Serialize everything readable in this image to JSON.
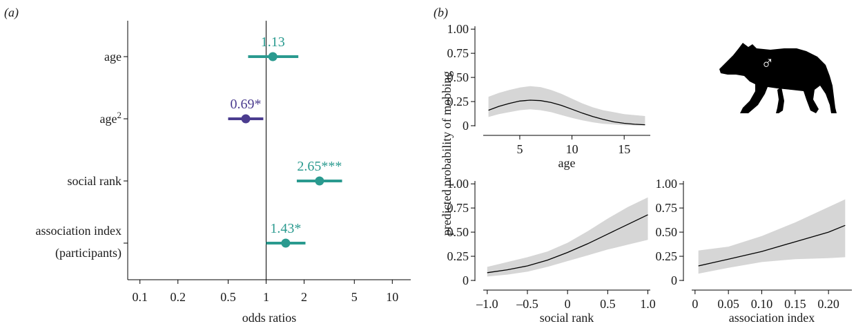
{
  "panel_labels": {
    "a": "(a)",
    "b": "(b)"
  },
  "colors": {
    "green": "#2a9a8f",
    "purple": "#4b3c8f",
    "band": "#d6d6d6",
    "line": "#000000"
  },
  "icon": "hyena-silhouette-icon",
  "male_symbol": "♂",
  "chart_data": [
    {
      "type": "forest",
      "xlabel": "odds ratios",
      "xscale": "log",
      "xlim": [
        0.08,
        14
      ],
      "xticks": [
        0.1,
        0.2,
        0.5,
        1,
        2,
        5,
        10
      ],
      "xtick_labels": [
        "0.1",
        "0.2",
        "0.5",
        "1",
        "2",
        "5",
        "10"
      ],
      "reference_line": 1,
      "rows": [
        {
          "label": "age",
          "or": 1.13,
          "lo": 0.72,
          "hi": 1.8,
          "annot": "1.13",
          "color": "green"
        },
        {
          "label": "age",
          "sup": "2",
          "or": 0.69,
          "lo": 0.5,
          "hi": 0.95,
          "annot": "0.69*",
          "color": "purple"
        },
        {
          "label": "social rank",
          "or": 2.65,
          "lo": 1.75,
          "hi": 4.0,
          "annot": "2.65***",
          "color": "green"
        },
        {
          "label": "association index",
          "label2": "(participants)",
          "or": 1.43,
          "lo": 1.0,
          "hi": 2.05,
          "annot": "1.43*",
          "color": "green"
        }
      ]
    },
    {
      "type": "line",
      "xlabel": "age",
      "shared_ylabel": "predicted probability of mobbing",
      "xlim": [
        1.5,
        17.5
      ],
      "ylim": [
        0,
        1.03
      ],
      "xticks": [
        5,
        10,
        15
      ],
      "xtick_labels": [
        "5",
        "10",
        "15"
      ],
      "yticks": [
        0,
        0.25,
        0.5,
        0.75,
        1.0
      ],
      "ytick_labels": [
        "0",
        "0.25",
        "0.50",
        "0.75",
        "1.00"
      ],
      "x": [
        2,
        3,
        4,
        5,
        6,
        7,
        8,
        9,
        10,
        11,
        12,
        13,
        14,
        15,
        16,
        17
      ],
      "y": [
        0.16,
        0.2,
        0.23,
        0.255,
        0.265,
        0.26,
        0.24,
        0.21,
        0.17,
        0.13,
        0.095,
        0.065,
        0.04,
        0.025,
        0.015,
        0.01
      ],
      "lower": [
        0.09,
        0.12,
        0.14,
        0.16,
        0.17,
        0.16,
        0.14,
        0.11,
        0.08,
        0.055,
        0.035,
        0.02,
        0.012,
        0.006,
        0.003,
        0.002
      ],
      "upper": [
        0.3,
        0.34,
        0.37,
        0.395,
        0.41,
        0.4,
        0.37,
        0.33,
        0.28,
        0.23,
        0.19,
        0.16,
        0.14,
        0.12,
        0.11,
        0.1
      ]
    },
    {
      "type": "line",
      "xlabel": "social rank",
      "xlim": [
        -1.05,
        1.03
      ],
      "ylim": [
        0,
        1.03
      ],
      "xticks": [
        -1.0,
        -0.5,
        0,
        0.5,
        1.0
      ],
      "xtick_labels": [
        "–1.0",
        "–0.5",
        "0",
        "0.5",
        "1.0"
      ],
      "yticks": [
        0,
        0.25,
        0.5,
        0.75,
        1.0
      ],
      "ytick_labels": [
        "0",
        "0.25",
        "0.50",
        "0.75",
        "1.00"
      ],
      "x": [
        -1.0,
        -0.75,
        -0.5,
        -0.25,
        0,
        0.25,
        0.5,
        0.75,
        1.0
      ],
      "y": [
        0.08,
        0.11,
        0.15,
        0.21,
        0.29,
        0.38,
        0.48,
        0.58,
        0.68
      ],
      "lower": [
        0.04,
        0.06,
        0.09,
        0.14,
        0.2,
        0.26,
        0.32,
        0.37,
        0.42
      ],
      "upper": [
        0.14,
        0.19,
        0.24,
        0.3,
        0.39,
        0.51,
        0.64,
        0.76,
        0.86
      ]
    },
    {
      "type": "line",
      "xlabel": "association index",
      "xlim": [
        -0.005,
        0.235
      ],
      "ylim": [
        0,
        1.03
      ],
      "xticks": [
        0,
        0.05,
        0.1,
        0.15,
        0.2
      ],
      "xtick_labels": [
        "0",
        "0.05",
        "0.10",
        "0.15",
        "0.20"
      ],
      "yticks": [
        0,
        0.25,
        0.5,
        0.75,
        1.0
      ],
      "ytick_labels": [
        "0",
        "0.25",
        "0.50",
        "0.75",
        "1.00"
      ],
      "x": [
        0.005,
        0.05,
        0.1,
        0.15,
        0.2,
        0.225
      ],
      "y": [
        0.15,
        0.22,
        0.3,
        0.4,
        0.5,
        0.57
      ],
      "lower": [
        0.07,
        0.13,
        0.19,
        0.22,
        0.23,
        0.24
      ],
      "upper": [
        0.31,
        0.35,
        0.46,
        0.6,
        0.76,
        0.84
      ]
    }
  ]
}
